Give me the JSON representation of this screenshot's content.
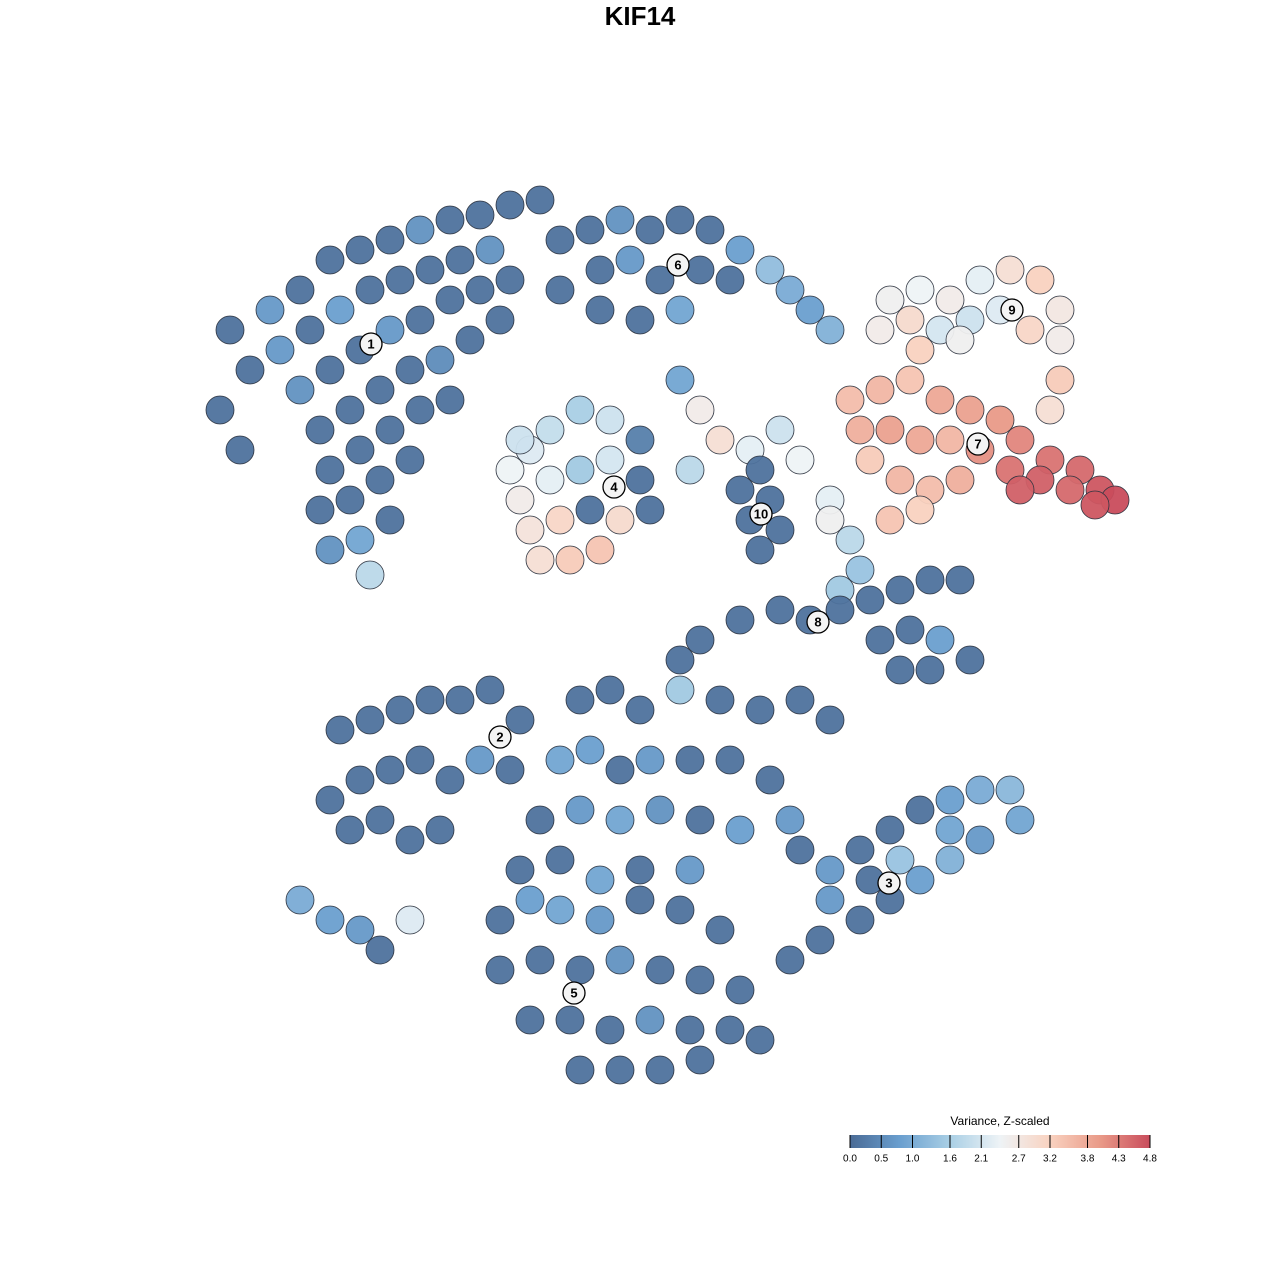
{
  "chart_data": {
    "type": "scatter",
    "title": "KIF14",
    "xlim": [
      0,
      1280
    ],
    "ylim": [
      1280,
      0
    ],
    "x": [
      230,
      250,
      220,
      240,
      270,
      300,
      330,
      360,
      390,
      420,
      450,
      480,
      510,
      540,
      280,
      310,
      340,
      370,
      400,
      430,
      460,
      490,
      300,
      330,
      360,
      390,
      420,
      450,
      480,
      510,
      320,
      350,
      380,
      410,
      440,
      470,
      500,
      330,
      360,
      390,
      420,
      450,
      320,
      350,
      380,
      410,
      330,
      360,
      390,
      370,
      560,
      590,
      620,
      650,
      680,
      710,
      740,
      770,
      600,
      630,
      660,
      700,
      730,
      560,
      600,
      640,
      680,
      790,
      810,
      830,
      510,
      530,
      550,
      580,
      610,
      640,
      520,
      550,
      580,
      610,
      640,
      530,
      560,
      590,
      620,
      540,
      570,
      600,
      520,
      650,
      680,
      700,
      720,
      750,
      780,
      800,
      760,
      690,
      890,
      920,
      950,
      980,
      1010,
      1040,
      1060,
      880,
      910,
      940,
      970,
      1000,
      1030,
      1060,
      1060,
      1050,
      920,
      960,
      850,
      880,
      910,
      940,
      970,
      1000,
      1020,
      1050,
      1080,
      1100,
      1115,
      860,
      890,
      920,
      950,
      980,
      1010,
      1040,
      1070,
      1095,
      870,
      900,
      930,
      960,
      1020,
      890,
      920,
      830,
      850,
      860,
      840,
      830,
      740,
      770,
      750,
      780,
      760,
      780,
      810,
      840,
      870,
      900,
      930,
      960,
      880,
      910,
      940,
      970,
      900,
      930,
      700,
      740,
      680,
      340,
      370,
      400,
      430,
      460,
      490,
      520,
      330,
      360,
      390,
      420,
      450,
      480,
      510,
      350,
      380,
      410,
      440,
      580,
      610,
      640,
      680,
      720,
      760,
      800,
      830,
      560,
      590,
      620,
      650,
      690,
      730,
      770,
      540,
      580,
      620,
      660,
      700,
      740,
      790,
      520,
      560,
      600,
      640,
      690,
      800,
      830,
      860,
      890,
      920,
      950,
      980,
      1010,
      1020,
      980,
      950,
      920,
      890,
      860,
      820,
      790,
      830,
      870,
      950,
      900,
      500,
      530,
      560,
      600,
      640,
      680,
      720,
      500,
      540,
      580,
      620,
      660,
      700,
      740,
      530,
      570,
      610,
      650,
      690,
      730,
      760,
      580,
      620,
      660,
      700,
      300,
      330,
      360,
      380,
      410
    ],
    "y": [
      330,
      370,
      410,
      450,
      310,
      290,
      260,
      250,
      240,
      230,
      220,
      215,
      205,
      200,
      350,
      330,
      310,
      290,
      280,
      270,
      260,
      250,
      390,
      370,
      350,
      330,
      320,
      300,
      290,
      280,
      430,
      410,
      390,
      370,
      360,
      340,
      320,
      470,
      450,
      430,
      410,
      400,
      510,
      500,
      480,
      460,
      550,
      540,
      520,
      575,
      240,
      230,
      220,
      230,
      220,
      230,
      250,
      270,
      270,
      260,
      280,
      270,
      280,
      290,
      310,
      320,
      310,
      290,
      310,
      330,
      470,
      450,
      430,
      410,
      420,
      440,
      500,
      480,
      470,
      460,
      480,
      530,
      520,
      510,
      520,
      560,
      560,
      550,
      440,
      510,
      380,
      410,
      440,
      450,
      430,
      460,
      470,
      470,
      300,
      290,
      300,
      280,
      270,
      280,
      310,
      330,
      320,
      330,
      320,
      310,
      330,
      340,
      380,
      410,
      350,
      340,
      400,
      390,
      380,
      400,
      410,
      420,
      440,
      460,
      470,
      490,
      500,
      430,
      430,
      440,
      440,
      450,
      470,
      480,
      490,
      505,
      460,
      480,
      490,
      480,
      490,
      520,
      510,
      500,
      540,
      570,
      590,
      520,
      490,
      500,
      520,
      530,
      550,
      610,
      620,
      610,
      600,
      590,
      580,
      580,
      640,
      630,
      640,
      660,
      670,
      670,
      640,
      620,
      660,
      730,
      720,
      710,
      700,
      700,
      690,
      720,
      800,
      780,
      770,
      760,
      780,
      760,
      770,
      830,
      820,
      840,
      830,
      700,
      690,
      710,
      690,
      700,
      710,
      700,
      720,
      760,
      750,
      770,
      760,
      760,
      760,
      780,
      820,
      810,
      820,
      810,
      820,
      830,
      820,
      870,
      860,
      880,
      870,
      870,
      850,
      870,
      850,
      830,
      810,
      800,
      790,
      790,
      820,
      840,
      860,
      880,
      900,
      920,
      940,
      960,
      900,
      880,
      830,
      860,
      920,
      900,
      910,
      920,
      900,
      910,
      930,
      970,
      960,
      970,
      960,
      970,
      980,
      990,
      1020,
      1020,
      1030,
      1020,
      1030,
      1030,
      1040,
      1070,
      1070,
      1070,
      1060,
      900,
      920,
      930,
      950,
      920
    ],
    "values": [
      0.1,
      0.1,
      0.1,
      0.1,
      0.7,
      0.1,
      0.1,
      0.1,
      0.1,
      0.6,
      0.1,
      0.1,
      0.1,
      0.1,
      0.7,
      0.1,
      0.8,
      0.1,
      0.1,
      0.1,
      0.1,
      0.6,
      0.6,
      0.1,
      0.1,
      0.7,
      0.1,
      0.1,
      0.1,
      0.1,
      0.1,
      0.1,
      0.1,
      0.1,
      0.5,
      0.1,
      0.1,
      0.1,
      0.1,
      0.1,
      0.1,
      0.1,
      0.1,
      0.1,
      0.1,
      0.1,
      0.6,
      0.9,
      0.1,
      1.8,
      0.1,
      0.1,
      0.6,
      0.1,
      0.1,
      0.1,
      0.8,
      1.3,
      0.1,
      0.7,
      0.1,
      0.1,
      0.1,
      0.1,
      0.1,
      0.1,
      0.9,
      1.0,
      0.8,
      1.1,
      2.4,
      2.2,
      1.9,
      1.6,
      2.0,
      0.3,
      2.6,
      2.3,
      1.5,
      2.1,
      0.1,
      2.8,
      3.1,
      0.1,
      3.0,
      2.9,
      3.3,
      3.4,
      2.0,
      0.1,
      0.9,
      2.6,
      2.9,
      2.3,
      2.0,
      2.4,
      0.1,
      1.8,
      2.5,
      2.4,
      2.6,
      2.3,
      2.9,
      3.2,
      2.7,
      2.6,
      3.0,
      2.1,
      2.0,
      2.2,
      3.1,
      2.6,
      3.3,
      2.9,
      3.2,
      2.5,
      3.5,
      3.6,
      3.4,
      3.8,
      3.9,
      4.0,
      4.2,
      4.4,
      4.5,
      4.7,
      4.8,
      3.7,
      3.9,
      3.8,
      3.6,
      4.1,
      4.4,
      4.6,
      4.5,
      4.7,
      3.3,
      3.6,
      3.5,
      3.7,
      4.6,
      3.4,
      3.2,
      2.3,
      1.8,
      1.4,
      1.5,
      2.5,
      0.1,
      0.1,
      0.1,
      0.1,
      0.1,
      0.1,
      0.1,
      0.1,
      0.1,
      0.1,
      0.1,
      0.1,
      0.1,
      0.1,
      0.8,
      0.1,
      0.1,
      0.1,
      0.1,
      0.1,
      0.1,
      0.1,
      0.1,
      0.1,
      0.1,
      0.1,
      0.1,
      0.1,
      0.1,
      0.1,
      0.1,
      0.1,
      0.1,
      0.7,
      0.1,
      0.1,
      0.1,
      0.1,
      0.1,
      0.1,
      0.1,
      0.1,
      1.5,
      0.1,
      0.1,
      0.1,
      0.1,
      0.9,
      0.8,
      0.1,
      0.7,
      0.1,
      0.1,
      0.1,
      0.1,
      0.7,
      0.9,
      0.6,
      0.1,
      0.8,
      0.7,
      0.1,
      0.1,
      0.9,
      0.1,
      0.7,
      0.1,
      0.7,
      0.1,
      0.1,
      0.1,
      0.8,
      1.0,
      1.2,
      0.9,
      0.7,
      1.1,
      0.8,
      0.1,
      0.1,
      0.1,
      0.1,
      0.7,
      0.1,
      0.9,
      1.4,
      0.1,
      0.8,
      0.9,
      0.7,
      0.1,
      0.1,
      0.1,
      0.1,
      0.1,
      0.1,
      0.6,
      0.1,
      0.1,
      0.1,
      0.1,
      0.1,
      0.1,
      0.6,
      0.1,
      0.1,
      0.1,
      0.1,
      0.1,
      0.1,
      0.1,
      1.0,
      0.8,
      0.7,
      0.1,
      2.2
    ],
    "clusters": [
      {
        "label": "1",
        "x": 371,
        "y": 344
      },
      {
        "label": "2",
        "x": 500,
        "y": 737
      },
      {
        "label": "3",
        "x": 889,
        "y": 883
      },
      {
        "label": "4",
        "x": 614,
        "y": 487
      },
      {
        "label": "5",
        "x": 574,
        "y": 993
      },
      {
        "label": "6",
        "x": 678,
        "y": 265
      },
      {
        "label": "7",
        "x": 978,
        "y": 444
      },
      {
        "label": "8",
        "x": 818,
        "y": 622
      },
      {
        "label": "9",
        "x": 1012,
        "y": 310
      },
      {
        "label": "10",
        "x": 761,
        "y": 514
      }
    ],
    "colorbar": {
      "title": "Variance, Z-scaled",
      "lim": [
        0,
        4.8
      ],
      "ticks": [
        {
          "value": 0,
          "label": "0.0"
        },
        0.5,
        {
          "value": 1,
          "label": "1.0"
        },
        1.6,
        2.1,
        2.7,
        3.2,
        3.8,
        4.3,
        4.8
      ],
      "colorscale": [
        [
          0,
          "#4a6b96"
        ],
        [
          0.8,
          "#6a9fcf"
        ],
        [
          1.6,
          "#a9cfe5"
        ],
        [
          2.4,
          "#eef3f6"
        ],
        [
          3.2,
          "#f9d2c0"
        ],
        [
          4.0,
          "#e99a88"
        ],
        [
          4.8,
          "#c94c5c"
        ]
      ]
    }
  }
}
